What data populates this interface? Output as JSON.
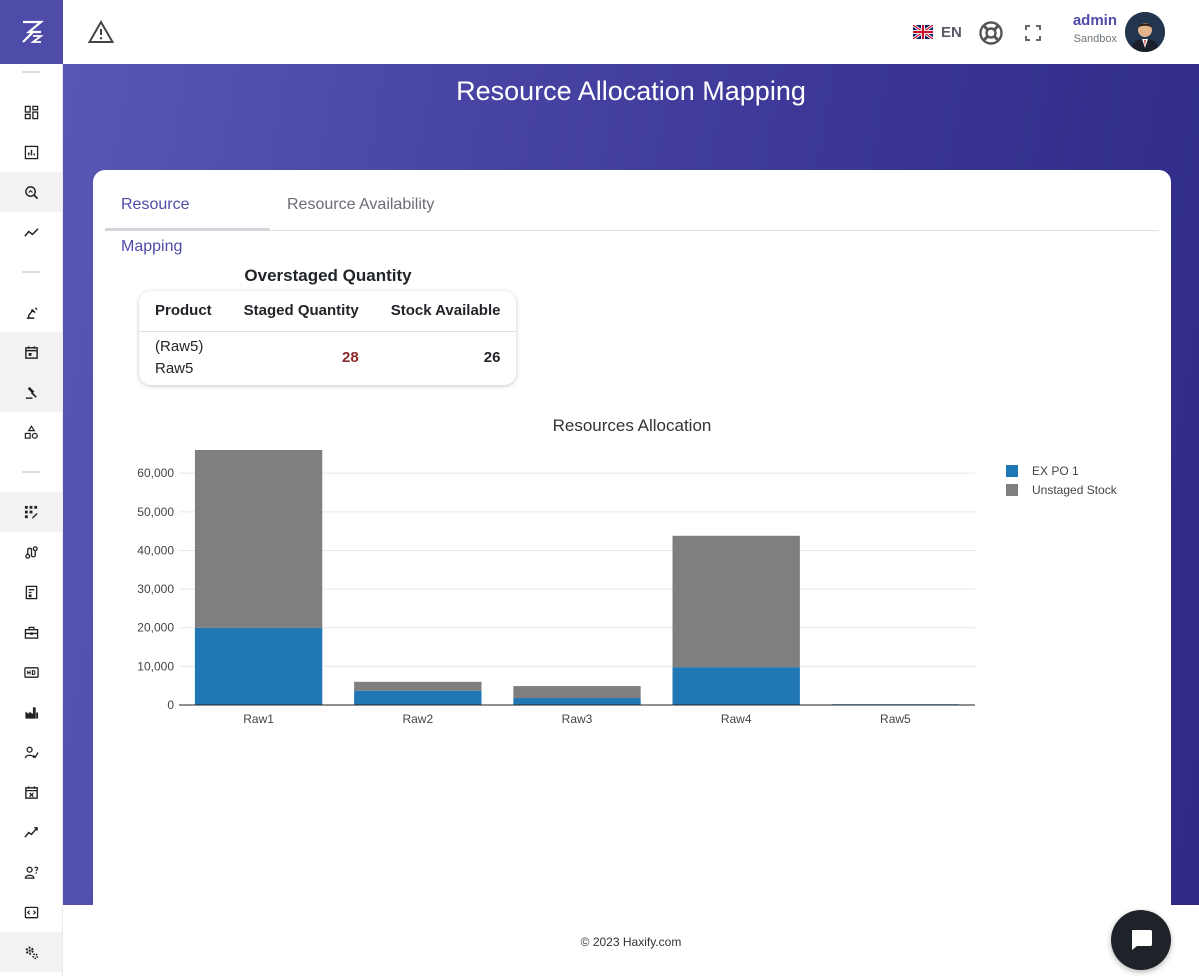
{
  "topbar": {
    "language_code": "EN",
    "user_name": "admin",
    "user_role": "Sandbox"
  },
  "page": {
    "title": "Resource Allocation Mapping"
  },
  "tabs": [
    {
      "label": "Resource Mapping",
      "active": true
    },
    {
      "label": "Resource Availability",
      "active": false
    }
  ],
  "overstaged": {
    "title": "Overstaged Quantity",
    "columns": [
      "Product",
      "Staged Quantity",
      "Stock Available"
    ],
    "rows": [
      {
        "product_line1": "(Raw5)",
        "product_line2": "Raw5",
        "staged": "28",
        "stock": "26"
      }
    ]
  },
  "sidebar": {
    "icons": [
      "dashboard-icon",
      "report-icon",
      "search-analytics-icon",
      "trend-icon",
      "robot-arm-icon",
      "calendar-icon",
      "gavel-icon",
      "shapes-icon",
      "grid-dots-icon",
      "route-icon",
      "document-icon",
      "toolbox-icon",
      "hd-icon",
      "factory-icon",
      "signature-icon",
      "calendar-x-icon",
      "line-chart-icon",
      "user-question-icon",
      "code-box-icon",
      "settings-gears-icon"
    ]
  },
  "colors": {
    "brand": "#4f4ca9",
    "series_blue": "#1f77b4",
    "series_gray": "#7f7f7f",
    "overstaged_value": "#8b2a2a"
  },
  "chart_data": {
    "type": "bar",
    "stacked": true,
    "title": "Resources Allocation",
    "categories": [
      "Raw1",
      "Raw2",
      "Raw3",
      "Raw4",
      "Raw5"
    ],
    "series": [
      {
        "name": "EX PO 1",
        "color": "#1f77b4",
        "values": [
          20000,
          3700,
          1800,
          9800,
          200
        ]
      },
      {
        "name": "Unstaged Stock",
        "color": "#7f7f7f",
        "values": [
          46000,
          2300,
          3100,
          34000,
          0
        ]
      }
    ],
    "y_ticks": [
      "0",
      "10,000",
      "20,000",
      "30,000",
      "40,000",
      "50,000",
      "60,000"
    ],
    "ylim": [
      0,
      66000
    ],
    "grid": true,
    "legend": "top-right"
  },
  "footer": {
    "text": "© 2023 Haxify.com"
  }
}
